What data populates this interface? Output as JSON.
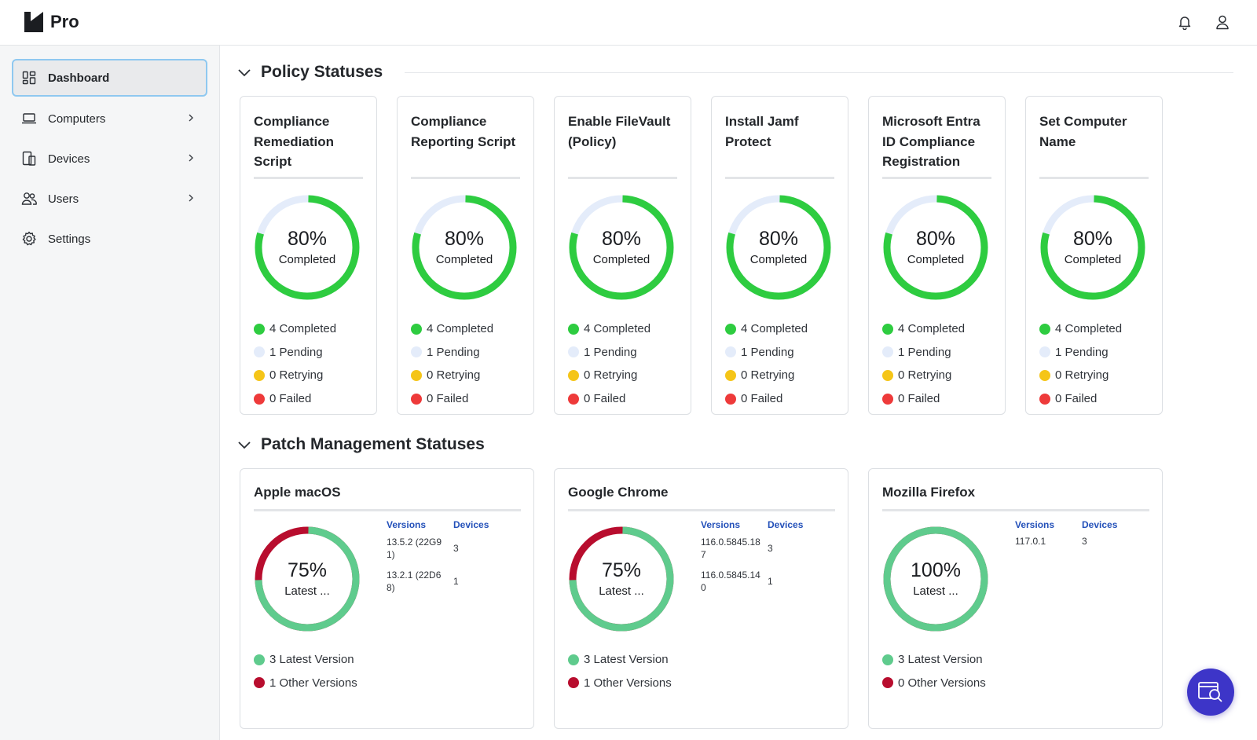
{
  "app": {
    "name": "Pro"
  },
  "colors": {
    "completed": "#2ecc40",
    "pending": "#e4ecfa",
    "retrying": "#f5c518",
    "failed": "#ee3a3a",
    "latest": "#5fcb8d",
    "other": "#b80d2e",
    "accent": "#3d35c8",
    "link": "#2350b9"
  },
  "topbar": {
    "icons": [
      "bell-icon",
      "user-icon"
    ]
  },
  "sidebar": {
    "items": [
      {
        "label": "Dashboard",
        "icon": "grid-icon",
        "active": true,
        "chevron": false
      },
      {
        "label": "Computers",
        "icon": "laptop-icon",
        "active": false,
        "chevron": true
      },
      {
        "label": "Devices",
        "icon": "devices-icon",
        "active": false,
        "chevron": true
      },
      {
        "label": "Users",
        "icon": "users-icon",
        "active": false,
        "chevron": true
      },
      {
        "label": "Settings",
        "icon": "gear-icon",
        "active": false,
        "chevron": false
      }
    ]
  },
  "policy_section": {
    "title": "Policy Statuses",
    "cards": [
      {
        "title": "Compliance Remediation Script",
        "percent": "80%",
        "sub": "Completed",
        "fraction": 0.8,
        "legend": [
          "4 Completed",
          "1 Pending",
          "0 Retrying",
          "0 Failed"
        ]
      },
      {
        "title": "Compliance Reporting Script",
        "percent": "80%",
        "sub": "Completed",
        "fraction": 0.8,
        "legend": [
          "4 Completed",
          "1 Pending",
          "0 Retrying",
          "0 Failed"
        ]
      },
      {
        "title": "Enable FileVault (Policy)",
        "percent": "80%",
        "sub": "Completed",
        "fraction": 0.8,
        "legend": [
          "4 Completed",
          "1 Pending",
          "0 Retrying",
          "0 Failed"
        ]
      },
      {
        "title": "Install Jamf Protect",
        "percent": "80%",
        "sub": "Completed",
        "fraction": 0.8,
        "legend": [
          "4 Completed",
          "1 Pending",
          "0 Retrying",
          "0 Failed"
        ]
      },
      {
        "title": "Microsoft Entra ID Compliance Registration",
        "percent": "80%",
        "sub": "Completed",
        "fraction": 0.8,
        "legend": [
          "4 Completed",
          "1 Pending",
          "0 Retrying",
          "0 Failed"
        ]
      },
      {
        "title": "Set Computer Name",
        "percent": "80%",
        "sub": "Completed",
        "fraction": 0.8,
        "legend": [
          "4 Completed",
          "1 Pending",
          "0 Retrying",
          "0 Failed"
        ]
      }
    ]
  },
  "patch_section": {
    "title": "Patch Management Statuses",
    "versions_header": "Versions",
    "devices_header": "Devices",
    "cards": [
      {
        "title": "Apple macOS",
        "percent": "75%",
        "sub": "Latest ...",
        "fraction": 0.75,
        "legend": [
          "3 Latest Version",
          "1 Other Versions"
        ],
        "rows": [
          {
            "version": "13.5.2 (22G91)",
            "devices": "3"
          },
          {
            "version": "13.2.1 (22D68)",
            "devices": "1"
          }
        ]
      },
      {
        "title": "Google Chrome",
        "percent": "75%",
        "sub": "Latest ...",
        "fraction": 0.75,
        "legend": [
          "3 Latest Version",
          "1 Other Versions"
        ],
        "rows": [
          {
            "version": "116.0.5845.187",
            "devices": "3"
          },
          {
            "version": "116.0.5845.140",
            "devices": "1"
          }
        ]
      },
      {
        "title": "Mozilla Firefox",
        "percent": "100%",
        "sub": "Latest ...",
        "fraction": 1.0,
        "legend": [
          "3 Latest Version",
          "0 Other Versions"
        ],
        "rows": [
          {
            "version": "117.0.1",
            "devices": "3"
          }
        ]
      }
    ]
  },
  "fab": {
    "icon": "search-window-icon"
  }
}
